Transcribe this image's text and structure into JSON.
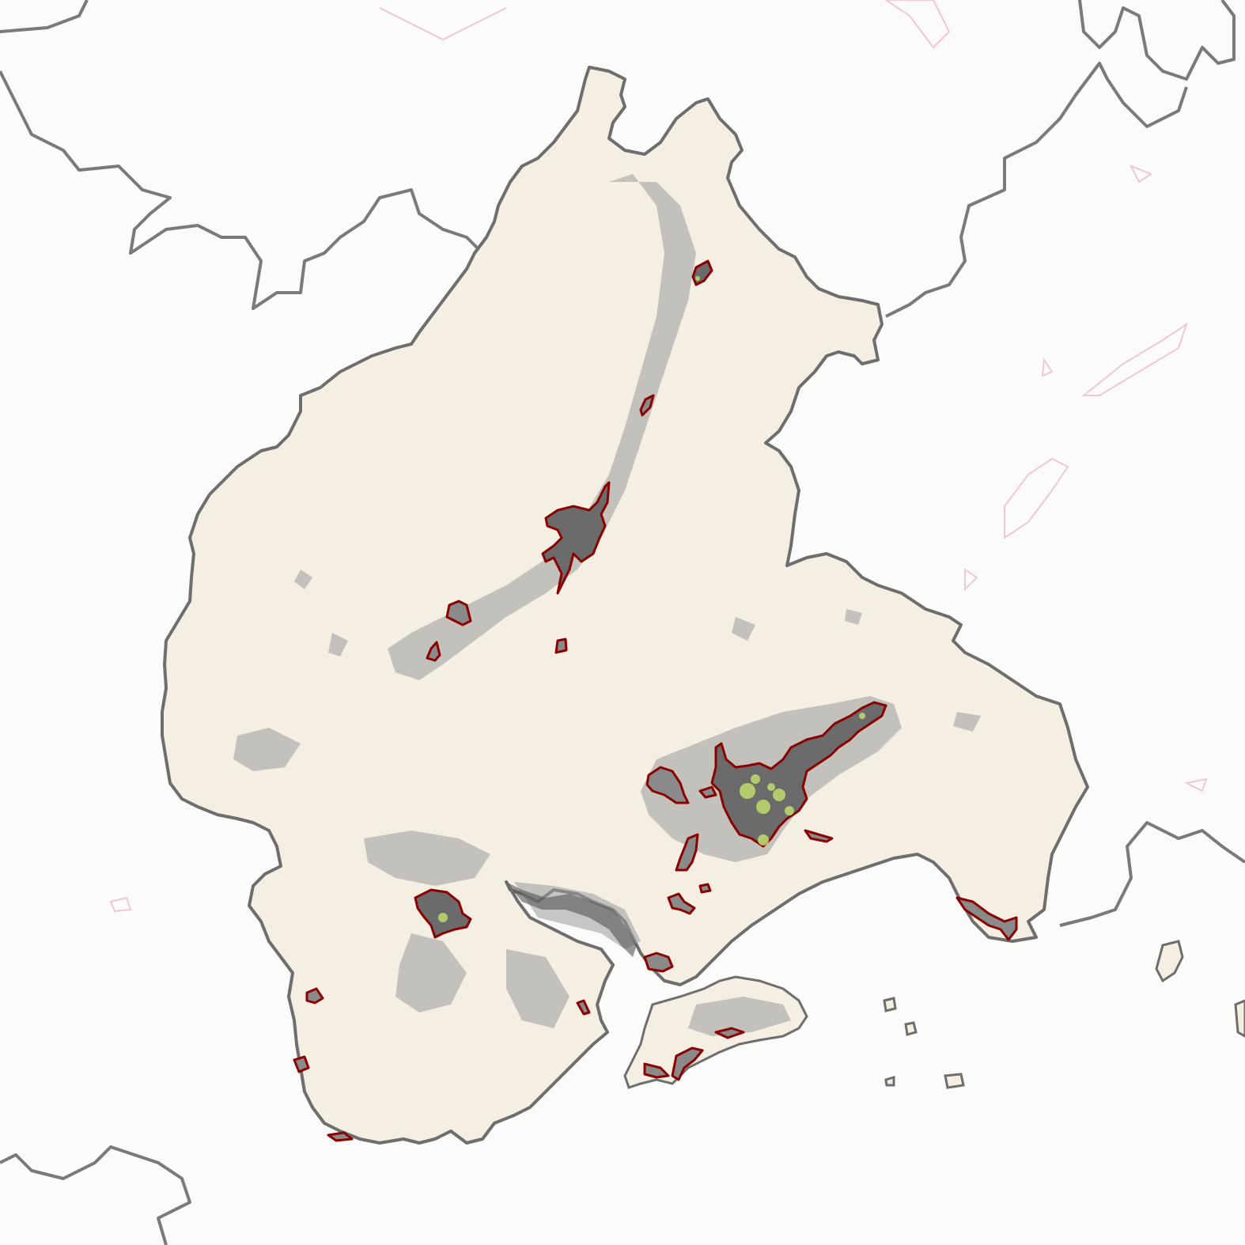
{
  "map": {
    "colors": {
      "study_region": "#f4efe2",
      "outside": "#fdfdfd",
      "boundary": "#6e6e6e",
      "urban_outline": "#8b0000",
      "urban_fill": "#6b6b6b",
      "green_space": "#c5e36a",
      "built_up_speckle": "#9a9a9a"
    },
    "layers": [
      "study-region",
      "neighbouring-boundaries",
      "built-up-areas",
      "urban-extents",
      "green-spaces"
    ]
  }
}
